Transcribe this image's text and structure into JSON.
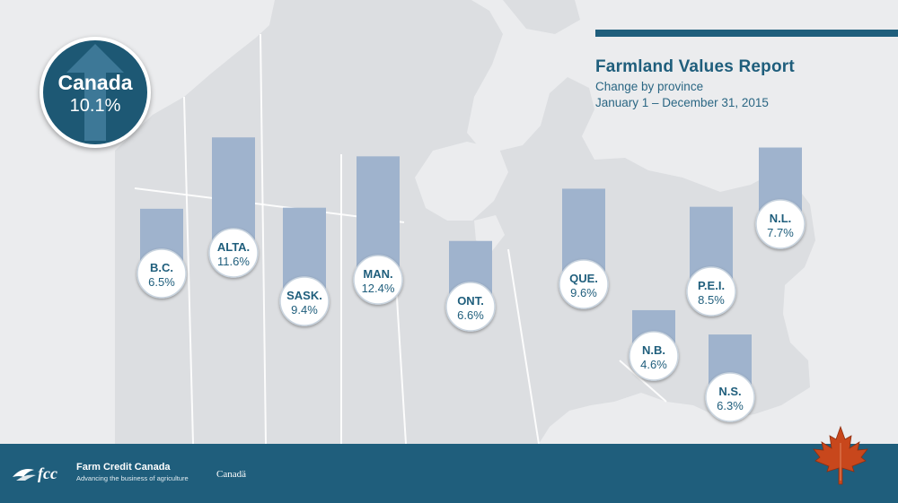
{
  "header": {
    "title": "Farmland Values Report",
    "subtitle": "Change by province",
    "period": "January 1 – December 31, 2015"
  },
  "national": {
    "name": "Canada",
    "value_label": "10.1%"
  },
  "colors": {
    "accent": "#1f5e7c",
    "bar": "#9fb3cd",
    "map_land": "#dcdee1",
    "map_water": "#ebecee",
    "label_text": "#1f5e7c",
    "maple_leaf": "#c8471c"
  },
  "chart_data": {
    "type": "bar",
    "title": "Farmland Values Report",
    "subtitle": "Change by province",
    "xlabel": "",
    "ylabel": "",
    "ylim": [
      0,
      14
    ],
    "grid": false,
    "national": {
      "name": "Canada",
      "value": 10.1,
      "label": "10.1%"
    },
    "categories": [
      "B.C.",
      "ALTA.",
      "SASK.",
      "MAN.",
      "ONT.",
      "QUE.",
      "N.B.",
      "P.E.I.",
      "N.S.",
      "N.L."
    ],
    "values": [
      6.5,
      11.6,
      9.4,
      12.4,
      6.6,
      9.6,
      4.6,
      8.5,
      6.3,
      7.7
    ],
    "value_labels": [
      "6.5%",
      "11.6%",
      "9.4%",
      "12.4%",
      "6.6%",
      "9.6%",
      "4.6%",
      "8.5%",
      "6.3%",
      "7.7%"
    ]
  },
  "footer": {
    "org_name": "Farm Credit Canada",
    "tagline": "Advancing the business of agriculture",
    "gov_wordmark": "Canadä"
  },
  "icons": {
    "fcc_logo": "fcc-logo-icon",
    "maple_leaf": "maple-leaf-icon",
    "badge_arrow": "up-arrow-icon"
  }
}
